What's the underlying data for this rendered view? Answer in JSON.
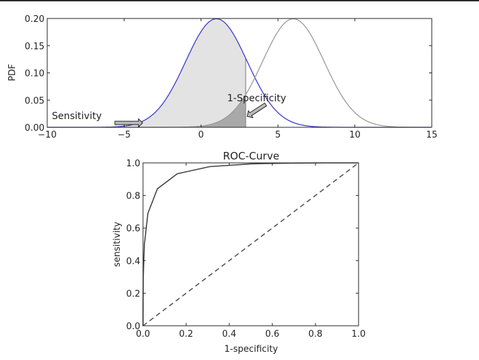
{
  "chart_data": [
    {
      "type": "line",
      "title": "",
      "xlabel": "",
      "ylabel": "PDF",
      "xlim": [
        -10,
        15
      ],
      "ylim": [
        0,
        0.2
      ],
      "xticks": [
        "−10",
        "−5",
        "0",
        "5",
        "10",
        "15"
      ],
      "xtick_values": [
        -10,
        -5,
        0,
        5,
        10,
        15
      ],
      "yticks": [
        "0.00",
        "0.05",
        "0.10",
        "0.15",
        "0.20"
      ],
      "ytick_values": [
        0,
        0.05,
        0.1,
        0.15,
        0.2
      ],
      "grid": false,
      "series": [
        {
          "distribution": "normal",
          "mean": 1,
          "sd": 2,
          "color": "#3a3acc"
        },
        {
          "distribution": "normal",
          "mean": 6,
          "sd": 2,
          "color": "#999999"
        }
      ],
      "threshold": 2.9,
      "shaded_regions": [
        {
          "under_series": 0,
          "from": -10,
          "to": 2.9,
          "color": "#e3e3e3"
        },
        {
          "under_series": 1,
          "from": -10,
          "to": 2.9,
          "color": "#a9a9a9"
        }
      ],
      "annotations": [
        {
          "text": "Sensitivity",
          "x": -9.7,
          "y": 0.015,
          "arrow_from": [
            -5.6,
            0.008
          ],
          "arrow_to": [
            -3.8,
            0.008
          ]
        },
        {
          "text": "1-Specificity",
          "x": 1.7,
          "y": 0.048,
          "arrow_from": [
            4.2,
            0.042
          ],
          "arrow_to": [
            3.0,
            0.02
          ]
        }
      ]
    },
    {
      "type": "line",
      "title": "ROC-Curve",
      "xlabel": "1-specificity",
      "ylabel": "sensitivity",
      "xlim": [
        0,
        1
      ],
      "ylim": [
        0,
        1
      ],
      "xticks": [
        "0.0",
        "0.2",
        "0.4",
        "0.6",
        "0.8",
        "1.0"
      ],
      "yticks": [
        "0.0",
        "0.2",
        "0.4",
        "0.6",
        "0.8",
        "1.0"
      ],
      "tick_values": [
        0,
        0.2,
        0.4,
        0.6,
        0.8,
        1.0
      ],
      "grid": false,
      "series": [
        {
          "style": "solid",
          "color": "#444444",
          "x": [
            0,
            0.0,
            0.0002,
            0.0013,
            0.0062,
            0.0228,
            0.0668,
            0.159,
            0.309,
            0.5,
            0.691,
            0.841,
            0.977,
            0.999,
            1
          ],
          "y": [
            0,
            0.023,
            0.159,
            0.309,
            0.5,
            0.691,
            0.841,
            0.933,
            0.977,
            0.994,
            0.9987,
            0.9998,
            1.0,
            1.0,
            1
          ]
        },
        {
          "style": "dashed",
          "color": "#555555",
          "x": [
            0,
            1
          ],
          "y": [
            0,
            1
          ]
        }
      ]
    }
  ]
}
